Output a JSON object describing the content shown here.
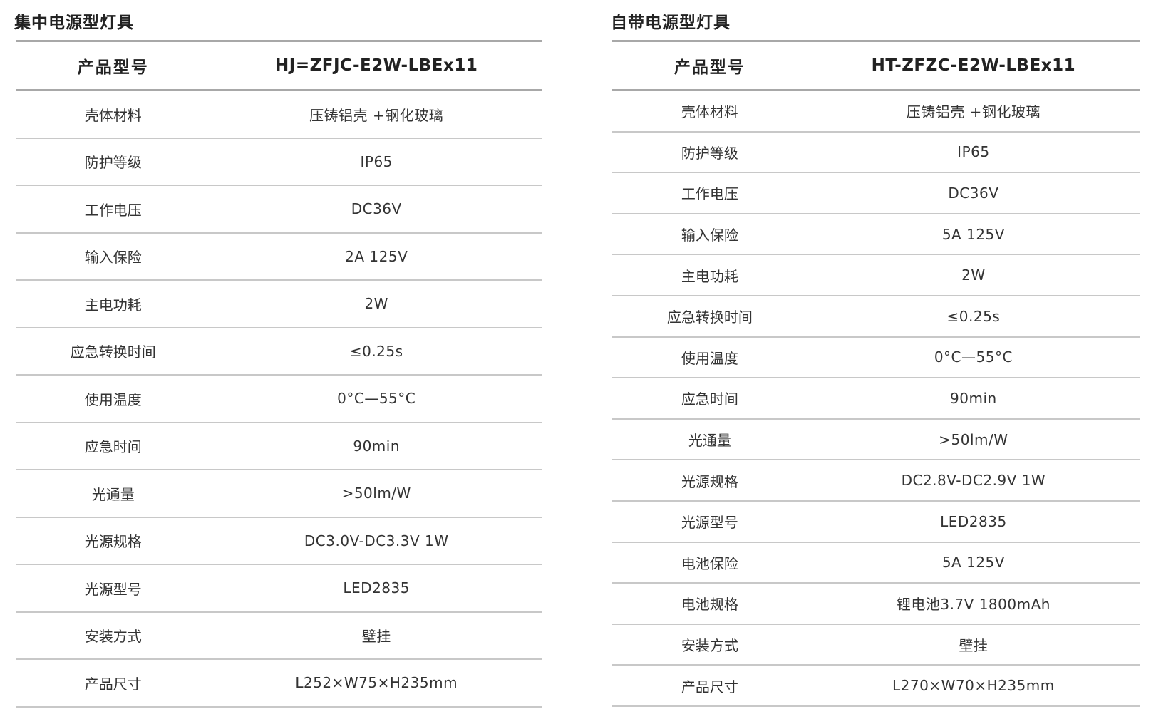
{
  "left": {
    "title": "集中电源型灯具",
    "header": {
      "label": "产品型号",
      "value": "HJ=ZFJC-E2W-LBEx11"
    },
    "rows": [
      {
        "label": "壳体材料",
        "value": "压铸铝壳 +钢化玻璃"
      },
      {
        "label": "防护等级",
        "value": "IP65"
      },
      {
        "label": "工作电压",
        "value": "DC36V"
      },
      {
        "label": "输入保险",
        "value": "2A 125V"
      },
      {
        "label": "主电功耗",
        "value": "2W"
      },
      {
        "label": "应急转换时间",
        "value": "≤0.25s"
      },
      {
        "label": "使用温度",
        "value": "0°C—55°C"
      },
      {
        "label": "应急时间",
        "value": "90min"
      },
      {
        "label": "光通量",
        "value": ">50lm/W"
      },
      {
        "label": "光源规格",
        "value": "DC3.0V-DC3.3V 1W"
      },
      {
        "label": "光源型号",
        "value": "LED2835"
      },
      {
        "label": "安装方式",
        "value": "壁挂"
      },
      {
        "label": "产品尺寸",
        "value": "L252×W75×H235mm"
      }
    ]
  },
  "right": {
    "title": "自带电源型灯具",
    "header": {
      "label": "产品型号",
      "value": "HT-ZFZC-E2W-LBEx11"
    },
    "rows": [
      {
        "label": "壳体材料",
        "value": "压铸铝壳 +钢化玻璃"
      },
      {
        "label": "防护等级",
        "value": "IP65"
      },
      {
        "label": "工作电压",
        "value": "DC36V"
      },
      {
        "label": "输入保险",
        "value": "5A 125V"
      },
      {
        "label": "主电功耗",
        "value": "2W"
      },
      {
        "label": "应急转换时间",
        "value": "≤0.25s"
      },
      {
        "label": "使用温度",
        "value": "0°C—55°C"
      },
      {
        "label": "应急时间",
        "value": "90min"
      },
      {
        "label": "光通量",
        "value": ">50lm/W"
      },
      {
        "label": "光源规格",
        "value": "DC2.8V-DC2.9V 1W"
      },
      {
        "label": "光源型号",
        "value": "LED2835"
      },
      {
        "label": "电池保险",
        "value": "5A 125V"
      },
      {
        "label": "电池规格",
        "value": "锂电池3.7V 1800mAh"
      },
      {
        "label": "安装方式",
        "value": "壁挂"
      },
      {
        "label": "产品尺寸",
        "value": "L270×W70×H235mm"
      }
    ]
  }
}
